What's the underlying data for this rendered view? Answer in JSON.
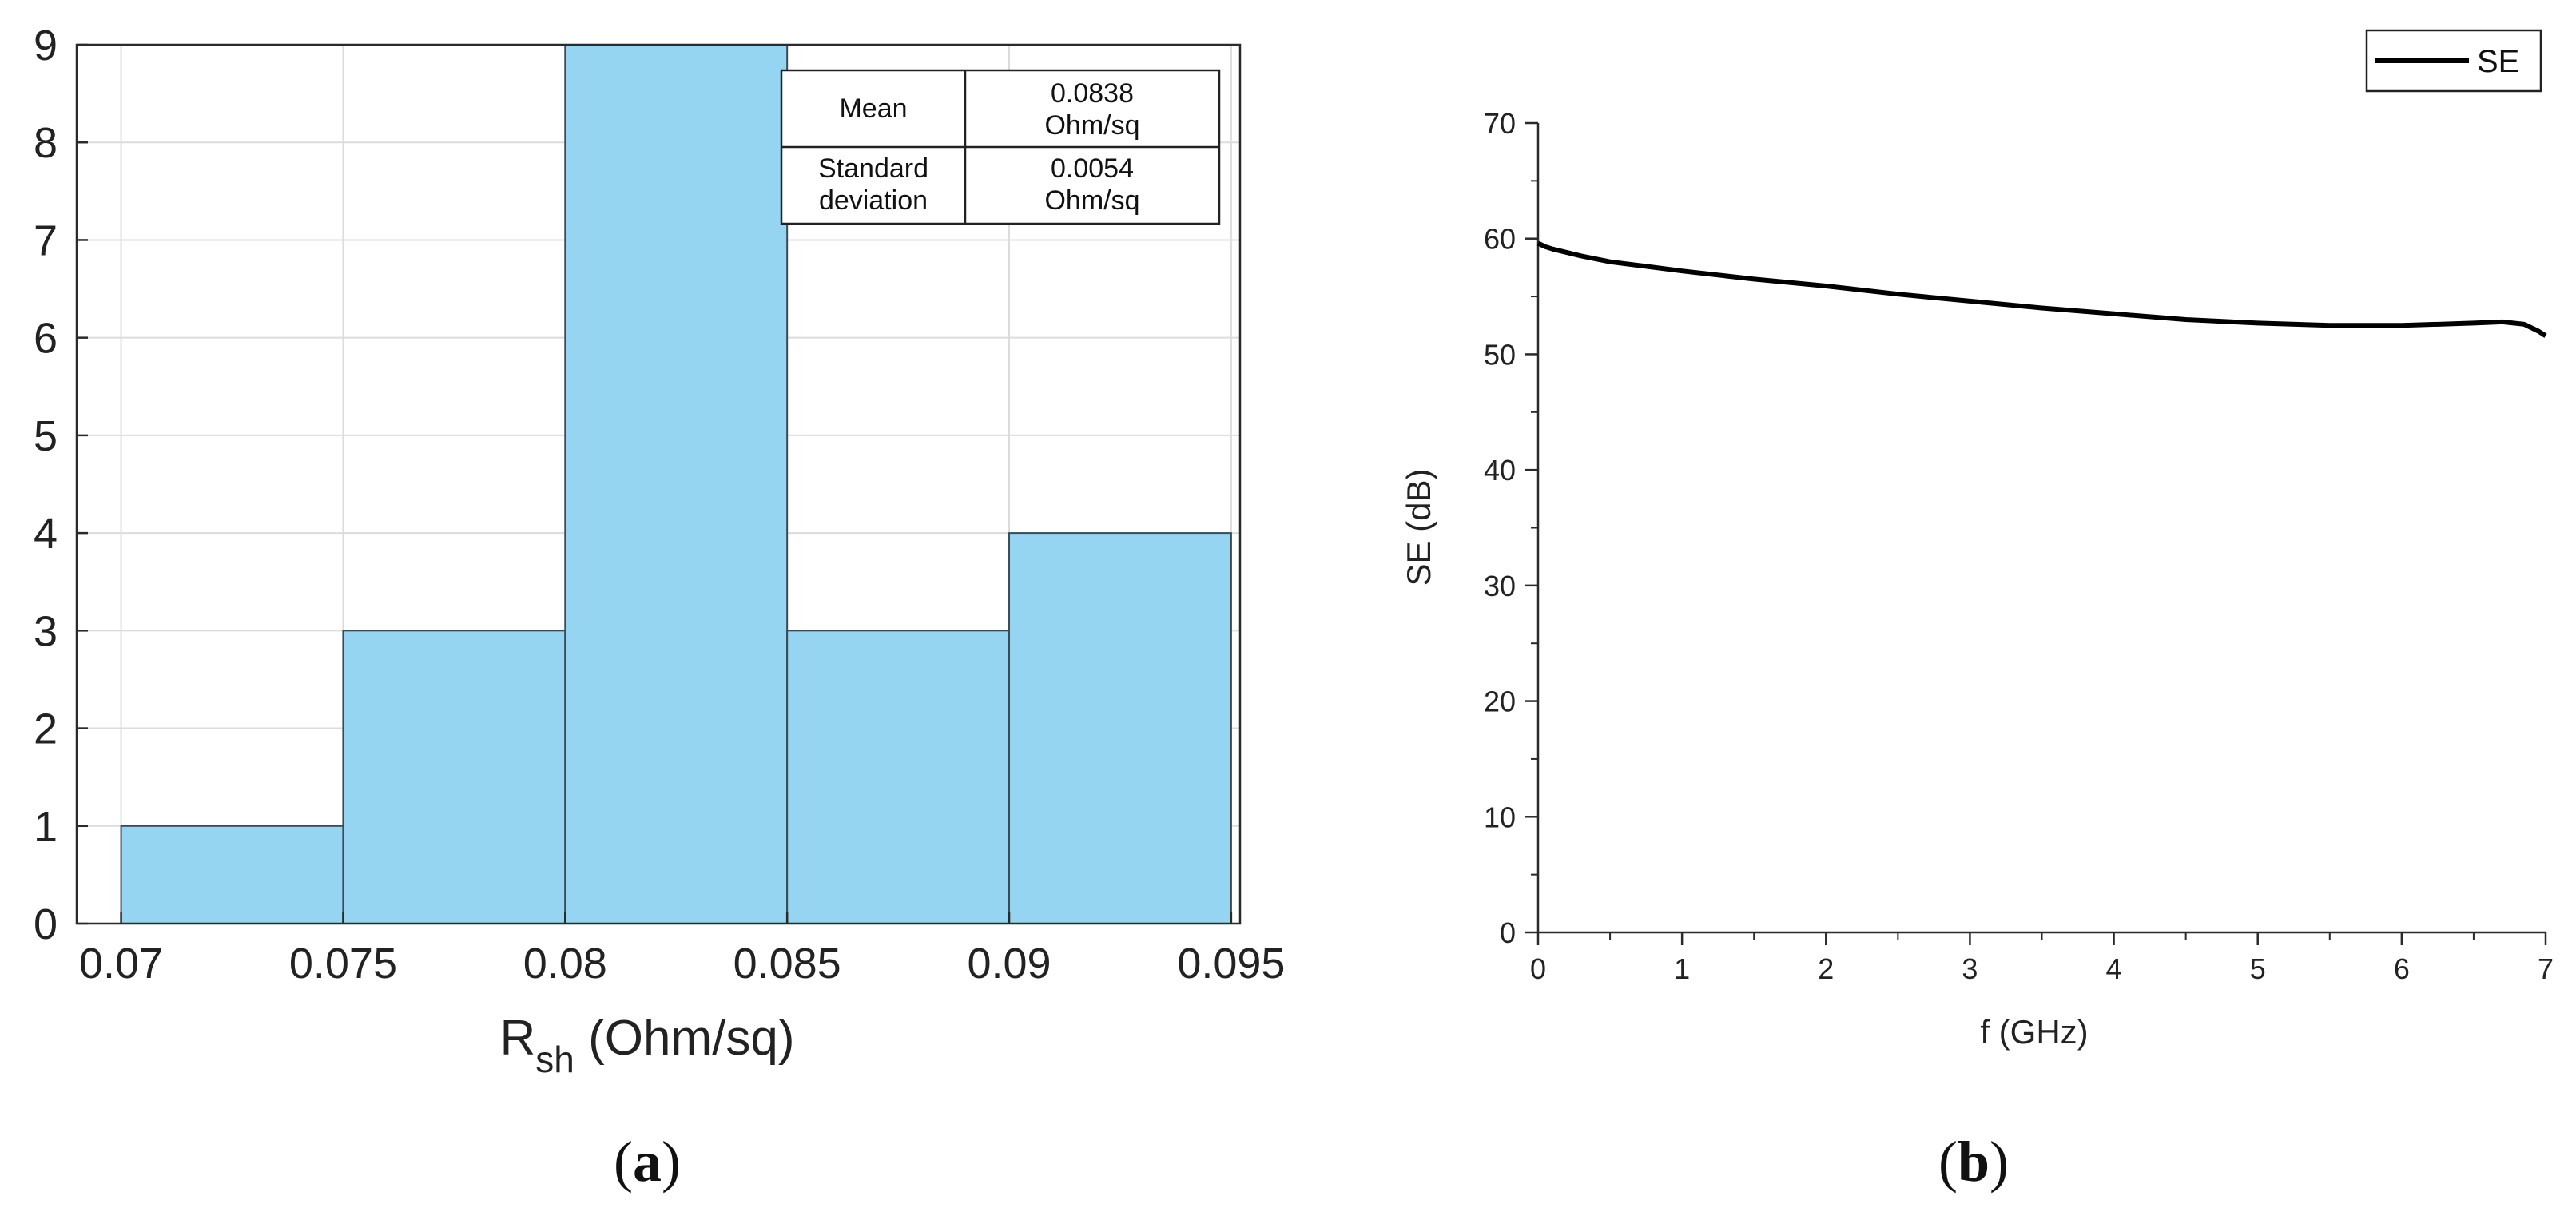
{
  "panels": {
    "a": {
      "caption_letter": "a"
    },
    "b": {
      "caption_letter": "b"
    }
  },
  "stats_table": {
    "rows": [
      {
        "label": [
          "Mean"
        ],
        "value": [
          "0.0838",
          "Ohm/sq"
        ]
      },
      {
        "label": [
          "Standard",
          "deviation"
        ],
        "value": [
          "0.0054",
          "Ohm/sq"
        ]
      }
    ]
  },
  "colors": {
    "bar_fill": "#95d5f2",
    "bar_edge": "#3c4a52",
    "grid": "#dcdcdc",
    "axis": "#2a2a2a",
    "line": "#000000"
  },
  "chart_data": [
    {
      "type": "bar",
      "title": "",
      "xlabel_main": "R",
      "xlabel_sub": "sh",
      "xlabel_rest": " (Ohm/sq)",
      "ylabel": "",
      "bin_edges": [
        0.07,
        0.075,
        0.08,
        0.085,
        0.09,
        0.095
      ],
      "values": [
        1,
        3,
        9,
        3,
        4
      ],
      "xlim": [
        0.069,
        0.0952
      ],
      "ylim": [
        0,
        9
      ],
      "x_ticks": [
        0.07,
        0.075,
        0.08,
        0.085,
        0.09,
        0.095
      ],
      "x_tick_labels": [
        "0.07",
        "0.075",
        "0.08",
        "0.085",
        "0.09",
        "0.095"
      ],
      "y_ticks": [
        0,
        1,
        2,
        3,
        4,
        5,
        6,
        7,
        8,
        9
      ],
      "y_tick_labels": [
        "0",
        "1",
        "2",
        "3",
        "4",
        "5",
        "6",
        "7",
        "8",
        "9"
      ],
      "grid": true
    },
    {
      "type": "line",
      "title": "",
      "xlabel": "f (GHz)",
      "ylabel": "SE (dB)",
      "xlim": [
        0,
        7
      ],
      "ylim": [
        0,
        70
      ],
      "x_ticks": [
        0,
        1,
        2,
        3,
        4,
        5,
        6,
        7
      ],
      "x_tick_labels": [
        "0",
        "1",
        "2",
        "3",
        "4",
        "5",
        "6",
        "7"
      ],
      "y_ticks": [
        0,
        10,
        20,
        30,
        40,
        50,
        60,
        70
      ],
      "y_tick_labels": [
        "0",
        "10",
        "20",
        "30",
        "40",
        "50",
        "60",
        "70"
      ],
      "grid": false,
      "legend": "top-right",
      "series": [
        {
          "name": "SE",
          "x": [
            0,
            0.05,
            0.1,
            0.2,
            0.3,
            0.5,
            0.75,
            1.0,
            1.5,
            2.0,
            2.5,
            3.0,
            3.5,
            4.0,
            4.5,
            5.0,
            5.5,
            6.0,
            6.5,
            6.7,
            6.85,
            6.95,
            7.0
          ],
          "y": [
            59.6,
            59.3,
            59.1,
            58.8,
            58.5,
            58.0,
            57.6,
            57.2,
            56.5,
            55.9,
            55.2,
            54.6,
            54.0,
            53.5,
            53.0,
            52.7,
            52.5,
            52.5,
            52.7,
            52.8,
            52.6,
            52.0,
            51.6
          ]
        }
      ]
    }
  ]
}
